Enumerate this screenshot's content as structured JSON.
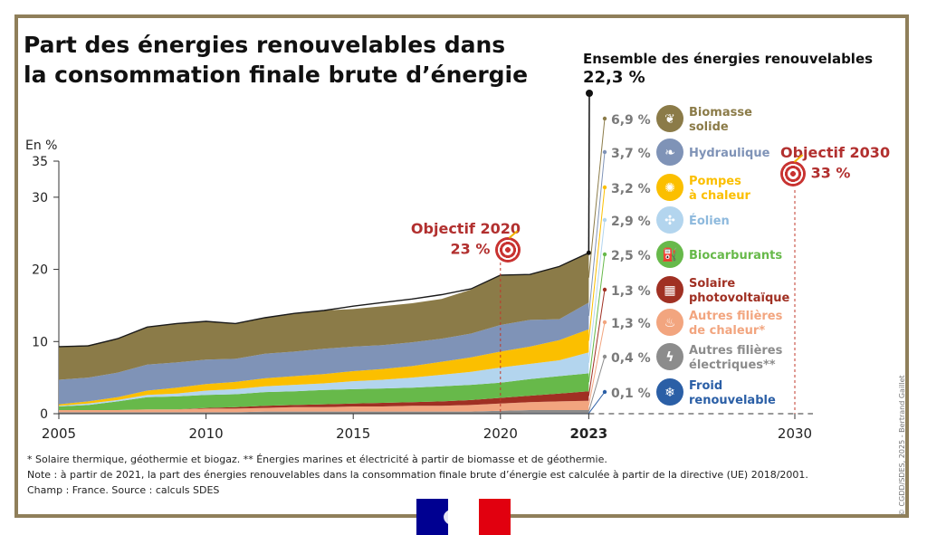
{
  "title_line1": "Part des énergies renouvelables dans",
  "title_line2": "la consommation finale brute d’énergie",
  "y_unit": "En %",
  "total": {
    "label": "Ensemble des énergies renouvelables",
    "value": "22,3 %"
  },
  "goal_2020": {
    "title": "Objectif 2020",
    "value": "23 %"
  },
  "goal_2030": {
    "title": "Objectif 2030",
    "value": "33 %"
  },
  "notes": {
    "line1": "* Solaire thermique, géothermie et biogaz.  ** Énergies marines et électricité à partir de biomasse et de géothermie.",
    "line2": "Note : à partir de 2021, la part des énergies renouvelables dans la consommation finale brute d’énergie est calculée à partir de la directive (UE) 2018/2001.",
    "line3": "Champ : France. Source : calculs SDES"
  },
  "credit": "© CGDD/SDES, 2025 - Bertrand Gaillet",
  "chart_data": {
    "type": "area",
    "stacked": true,
    "x": [
      2005,
      2006,
      2007,
      2008,
      2009,
      2010,
      2011,
      2012,
      2013,
      2014,
      2015,
      2016,
      2017,
      2018,
      2019,
      2020,
      2021,
      2022,
      2023
    ],
    "x_ticks": [
      "2005",
      "2010",
      "2015",
      "2020",
      "2023",
      "2030"
    ],
    "y_ticks": [
      "0",
      "10",
      "20",
      "30",
      "35"
    ],
    "ylim": [
      0,
      35
    ],
    "xlim": [
      2005,
      2030
    ],
    "ylabel": "En %",
    "series": [
      {
        "name": "Froid renouvelable",
        "legend": [
          "Froid",
          "renouvelable"
        ],
        "label_2023": "0,1 %",
        "color": "#2b5fa6",
        "icon": "snowflake-icon",
        "values": [
          0,
          0,
          0,
          0,
          0,
          0,
          0,
          0,
          0,
          0,
          0,
          0,
          0,
          0,
          0,
          0,
          0.1,
          0.1,
          0.1
        ]
      },
      {
        "name": "Autres filières électriques**",
        "legend": [
          "Autres filières",
          "électriques**"
        ],
        "label_2023": "0,4 %",
        "color": "#8c8c8c",
        "icon": "lightning-icon",
        "values": [
          0.2,
          0.2,
          0.2,
          0.2,
          0.2,
          0.2,
          0.2,
          0.3,
          0.3,
          0.3,
          0.3,
          0.3,
          0.3,
          0.3,
          0.3,
          0.4,
          0.4,
          0.4,
          0.4
        ]
      },
      {
        "name": "Autres filières de chaleur*",
        "legend": [
          "Autres filières",
          "de chaleur*"
        ],
        "label_2023": "1,3 %",
        "color": "#f2a57f",
        "icon": "flame-icon",
        "values": [
          0.3,
          0.3,
          0.3,
          0.4,
          0.4,
          0.5,
          0.5,
          0.5,
          0.6,
          0.6,
          0.7,
          0.7,
          0.8,
          0.8,
          0.9,
          1.0,
          1.1,
          1.2,
          1.3
        ]
      },
      {
        "name": "Solaire photovoltaïque",
        "legend": [
          "Solaire",
          "photovoltaïque"
        ],
        "label_2023": "1,3 %",
        "color": "#a03023",
        "icon": "solar-panel-icon",
        "values": [
          0,
          0,
          0,
          0,
          0,
          0.1,
          0.2,
          0.3,
          0.3,
          0.4,
          0.4,
          0.5,
          0.5,
          0.6,
          0.7,
          0.8,
          0.9,
          1.1,
          1.3
        ]
      },
      {
        "name": "Biocarburants",
        "legend": [
          "Biocarburants"
        ],
        "label_2023": "2,5 %",
        "color": "#67b94a",
        "icon": "fuel-pump-icon",
        "values": [
          0.5,
          0.7,
          1.2,
          1.7,
          1.8,
          1.8,
          1.8,
          1.9,
          1.9,
          2.0,
          2.0,
          2.0,
          2.0,
          2.1,
          2.1,
          2.1,
          2.3,
          2.4,
          2.5
        ]
      },
      {
        "name": "Éolien",
        "legend": [
          "Éolien"
        ],
        "label_2023": "2,9 %",
        "color": "#b3d5ee",
        "icon": "wind-turbine-icon",
        "values": [
          0.1,
          0.2,
          0.2,
          0.3,
          0.4,
          0.6,
          0.7,
          0.8,
          0.9,
          0.9,
          1.1,
          1.2,
          1.4,
          1.6,
          1.8,
          2.1,
          2.1,
          2.2,
          2.9
        ]
      },
      {
        "name": "Pompes à chaleur",
        "legend": [
          "Pompes",
          "à chaleur"
        ],
        "label_2023": "3,2 %",
        "color": "#fbbf00",
        "icon": "heat-pump-icon",
        "values": [
          0.2,
          0.3,
          0.4,
          0.6,
          0.8,
          0.9,
          1.0,
          1.1,
          1.2,
          1.3,
          1.4,
          1.5,
          1.6,
          1.8,
          2.0,
          2.2,
          2.4,
          2.8,
          3.2
        ]
      },
      {
        "name": "Hydraulique",
        "legend": [
          "Hydraulique"
        ],
        "label_2023": "3,7 %",
        "color": "#7f93b7",
        "icon": "water-drops-icon",
        "values": [
          3.4,
          3.3,
          3.4,
          3.6,
          3.5,
          3.4,
          3.2,
          3.4,
          3.4,
          3.5,
          3.4,
          3.3,
          3.3,
          3.2,
          3.3,
          3.7,
          3.7,
          2.9,
          3.7
        ]
      },
      {
        "name": "Biomasse solide",
        "legend": [
          "Biomasse",
          "solide"
        ],
        "label_2023": "6,9 %",
        "color": "#8b7b48",
        "icon": "leaf-icon",
        "values": [
          4.6,
          4.5,
          4.7,
          5.2,
          5.4,
          5.3,
          4.9,
          5.0,
          5.3,
          5.3,
          5.2,
          5.4,
          5.4,
          5.5,
          6.1,
          6.9,
          6.3,
          7.3,
          6.9
        ]
      }
    ],
    "total_line": [
      9.3,
      9.4,
      10.4,
      12.0,
      12.5,
      12.8,
      12.5,
      13.3,
      13.9,
      14.3,
      14.9,
      15.4,
      15.9,
      16.5,
      17.3,
      19.2,
      19.3,
      20.4,
      22.3
    ],
    "goals": [
      {
        "year": 2020,
        "value": 23
      },
      {
        "year": 2030,
        "value": 33
      }
    ]
  }
}
